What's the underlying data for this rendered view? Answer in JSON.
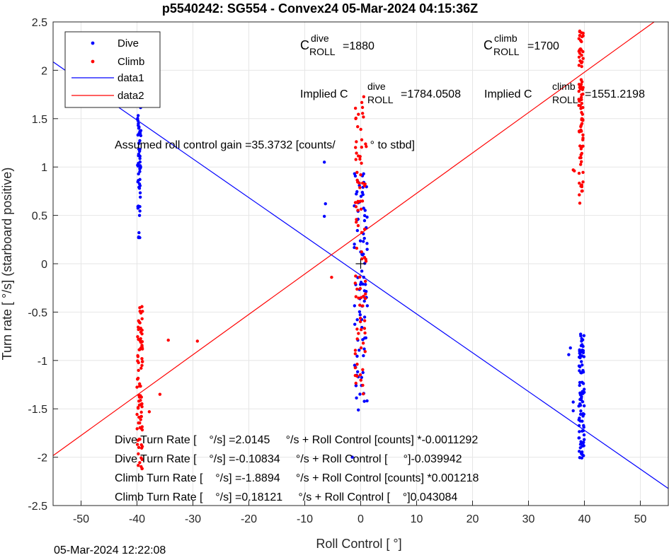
{
  "chart_data": {
    "type": "scatter",
    "title": "p5540242: SG554 - Convex24 05-Mar-2024 04:15:36Z",
    "xlabel": "Roll Control [   °]",
    "ylabel": "Turn rate [   °/s] (starboard positive)",
    "xlim": [
      -55,
      55
    ],
    "ylim": [
      -2.5,
      2.5
    ],
    "xticks": [
      "-50",
      "-40",
      "-30",
      "-20",
      "-10",
      "0",
      "10",
      "20",
      "30",
      "40",
      "50"
    ],
    "yticks": [
      "-2.5",
      "-2",
      "-1.5",
      "-1",
      "-0.5",
      "0",
      "0.5",
      "1",
      "1.5",
      "2",
      "2.5"
    ],
    "grid": true,
    "legend_location": "top-left",
    "legend": [
      "Dive",
      "Climb",
      "data1",
      "data2"
    ],
    "colors": {
      "dive": "#0000ff",
      "climb": "#ff0000",
      "data1": "#0000ff",
      "data2": "#ff0000"
    },
    "series": [
      {
        "name": "Dive",
        "marker": "dot",
        "clusters": [
          {
            "x": -39.6,
            "x_spread": 0.3,
            "y_range": [
              0.25,
              2.38
            ]
          },
          {
            "x": 0.0,
            "x_spread": 1.2,
            "y_range": [
              -1.53,
              0.95
            ]
          },
          {
            "x": 39.5,
            "x_spread": 0.5,
            "y_range": [
              -2.02,
              -0.7
            ]
          }
        ],
        "points": [
          [
            -6.5,
            1.05
          ],
          [
            -6.3,
            0.62
          ],
          [
            -6.5,
            0.49
          ],
          [
            -1.5,
            -2.0
          ],
          [
            37.5,
            -0.87
          ],
          [
            37.2,
            -0.94
          ],
          [
            38.0,
            -1.43
          ],
          [
            38.0,
            -1.52
          ]
        ]
      },
      {
        "name": "Climb",
        "marker": "dot",
        "clusters": [
          {
            "x": -39.5,
            "x_spread": 0.5,
            "y_range": [
              -2.15,
              -0.44
            ]
          },
          {
            "x": 0.0,
            "x_spread": 1.0,
            "y_range": [
              -1.35,
              1.85
            ]
          },
          {
            "x": 39.4,
            "x_spread": 0.4,
            "y_range": [
              0.62,
              2.45
            ]
          }
        ],
        "points": [
          [
            -34.4,
            -0.79
          ],
          [
            -29.2,
            -0.8
          ],
          [
            -35.9,
            -1.35
          ],
          [
            -37.8,
            -1.53
          ],
          [
            -5.2,
            -0.14
          ],
          [
            38.0,
            0.97
          ],
          [
            38.2,
            0.96
          ]
        ]
      },
      {
        "name": "data1",
        "type": "line",
        "x": [
          -55,
          55
        ],
        "y": [
          2.0866,
          -2.3233
        ]
      },
      {
        "name": "data2",
        "type": "line",
        "x": [
          -55,
          55
        ],
        "y": [
          -1.9838,
          2.6056
        ]
      }
    ],
    "crosshair": {
      "x": 0,
      "y": 0,
      "marker": "+"
    }
  },
  "annotations": {
    "c_roll_dive": {
      "C": "C",
      "sup": "dive",
      "sub": "ROLL",
      "value": "=1880"
    },
    "c_roll_climb": {
      "C": "C",
      "sup": "climb",
      "sub": "ROLL",
      "value": "=1700"
    },
    "implied_dive": {
      "prefix": "Implied C",
      "sup": "dive",
      "sub": "ROLL",
      "value": "=1784.0508"
    },
    "implied_climb": {
      "prefix": "Implied C",
      "sup": "climb",
      "sub": "ROLL",
      "value": "=1551.2198"
    },
    "gain_line": "Assumed roll control gain =35.3732 [counts/           ° to stbd]",
    "eq1": "Dive Turn Rate [    °/s] =2.0145     °/s + Roll Control [counts] *-0.0011292",
    "eq2": "Dive Turn Rate [    °/s] =-0.10834     °/s + Roll Control [     °]-0.039942",
    "eq3": "Climb Turn Rate [    °/s] =-1.8894     °/s + Roll Control [counts] *0.001218",
    "eq4": "Climb Turn Rate [    °/s] =0.18121     °/s + Roll Control [    °]0.043084"
  },
  "timestamp": "05-Mar-2024 12:22:08"
}
